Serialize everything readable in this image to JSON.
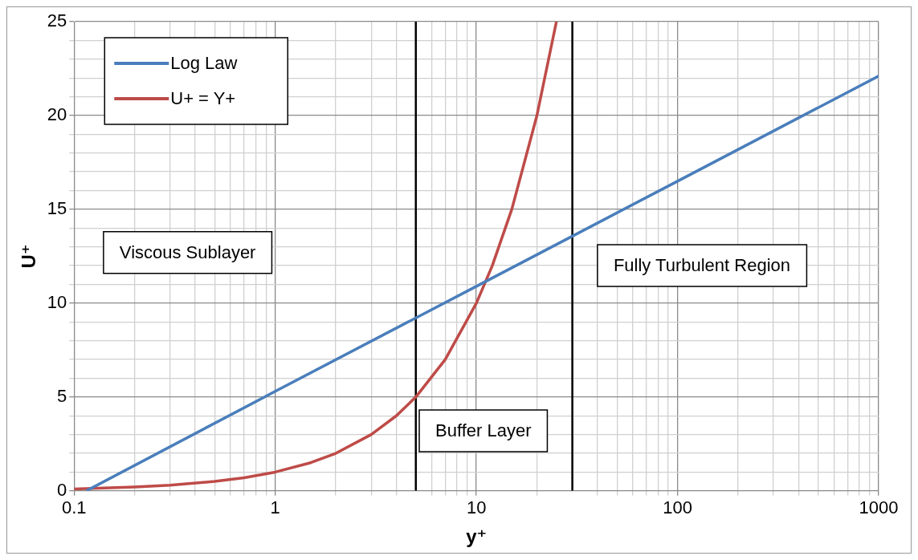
{
  "chart_data": {
    "type": "line",
    "xlabel": "y⁺",
    "ylabel": "U⁺",
    "series": [
      {
        "name": "Log Law",
        "color": "#4a7ebb",
        "x": [
          0.115,
          1,
          10,
          100,
          1000
        ],
        "values": [
          0,
          5.3,
          10.9,
          16.5,
          22.1
        ]
      },
      {
        "name": "U+ = Y+",
        "color": "#be4b48",
        "x": [
          0.1,
          0.2,
          0.3,
          0.5,
          0.7,
          1,
          1.5,
          2,
          3,
          4,
          5,
          7,
          10,
          12,
          15,
          20,
          25
        ],
        "values": [
          0.1,
          0.2,
          0.3,
          0.5,
          0.7,
          1,
          1.5,
          2,
          3,
          4,
          5,
          7,
          10,
          12,
          15,
          20,
          25
        ]
      }
    ],
    "log": "x",
    "xlim": [
      0.1,
      1000
    ],
    "xticks": [
      0.1,
      {
        "value": 0.2,
        "label": null
      },
      {
        "value": 0.3,
        "label": null
      },
      {
        "value": 0.4,
        "label": null
      },
      {
        "value": 0.5,
        "label": null
      },
      {
        "value": 0.6,
        "label": null
      },
      {
        "value": 0.7,
        "label": null
      },
      {
        "value": 0.8,
        "label": null
      },
      {
        "value": 0.9,
        "label": null
      },
      1,
      {
        "value": 2,
        "label": null
      },
      {
        "value": 3,
        "label": null
      },
      {
        "value": 4,
        "label": null
      },
      {
        "value": 6,
        "label": null
      },
      {
        "value": 7,
        "label": null
      },
      {
        "value": 8,
        "label": null
      },
      {
        "value": 9,
        "label": null
      },
      10,
      {
        "value": 20,
        "label": null
      },
      {
        "value": 40,
        "label": null
      },
      {
        "value": 50,
        "label": null
      },
      {
        "value": 60,
        "label": null
      },
      {
        "value": 70,
        "label": null
      },
      {
        "value": 80,
        "label": null
      },
      {
        "value": 90,
        "label": null
      },
      100,
      {
        "value": 200,
        "label": null
      },
      {
        "value": 300,
        "label": null
      },
      {
        "value": 400,
        "label": null
      },
      {
        "value": 500,
        "label": null
      },
      {
        "value": 600,
        "label": null
      },
      {
        "value": 700,
        "label": null
      },
      {
        "value": 800,
        "label": null
      },
      {
        "value": 900,
        "label": null
      },
      1000
    ],
    "ylim": [
      0,
      25
    ],
    "yticks": [
      0,
      {
        "value": 1,
        "label": null
      },
      {
        "value": 2,
        "label": null
      },
      {
        "value": 3,
        "label": null
      },
      {
        "value": 4,
        "label": null
      },
      5,
      {
        "value": 6,
        "label": null
      },
      {
        "value": 7,
        "label": null
      },
      {
        "value": 8,
        "label": null
      },
      {
        "value": 9,
        "label": null
      },
      10,
      {
        "value": 11,
        "label": null
      },
      {
        "value": 12,
        "label": null
      },
      {
        "value": 13,
        "label": null
      },
      {
        "value": 14,
        "label": null
      },
      15,
      {
        "value": 16,
        "label": null
      },
      {
        "value": 17,
        "label": null
      },
      {
        "value": 18,
        "label": null
      },
      {
        "value": 19,
        "label": null
      },
      20,
      {
        "value": 21,
        "label": null
      },
      {
        "value": 22,
        "label": null
      },
      {
        "value": 23,
        "label": null
      },
      {
        "value": 24,
        "label": null
      },
      25
    ],
    "ref_lines": [
      {
        "axis": "x",
        "value": 5,
        "color": "#000000"
      },
      {
        "axis": "x",
        "value": 30,
        "color": "#000000"
      }
    ],
    "annotations": [
      "Viscous Sublayer",
      "Buffer Layer",
      "Fully Turbulent Region"
    ],
    "grid": true,
    "legend": "top left",
    "marker": "none",
    "line_style": "solid"
  }
}
